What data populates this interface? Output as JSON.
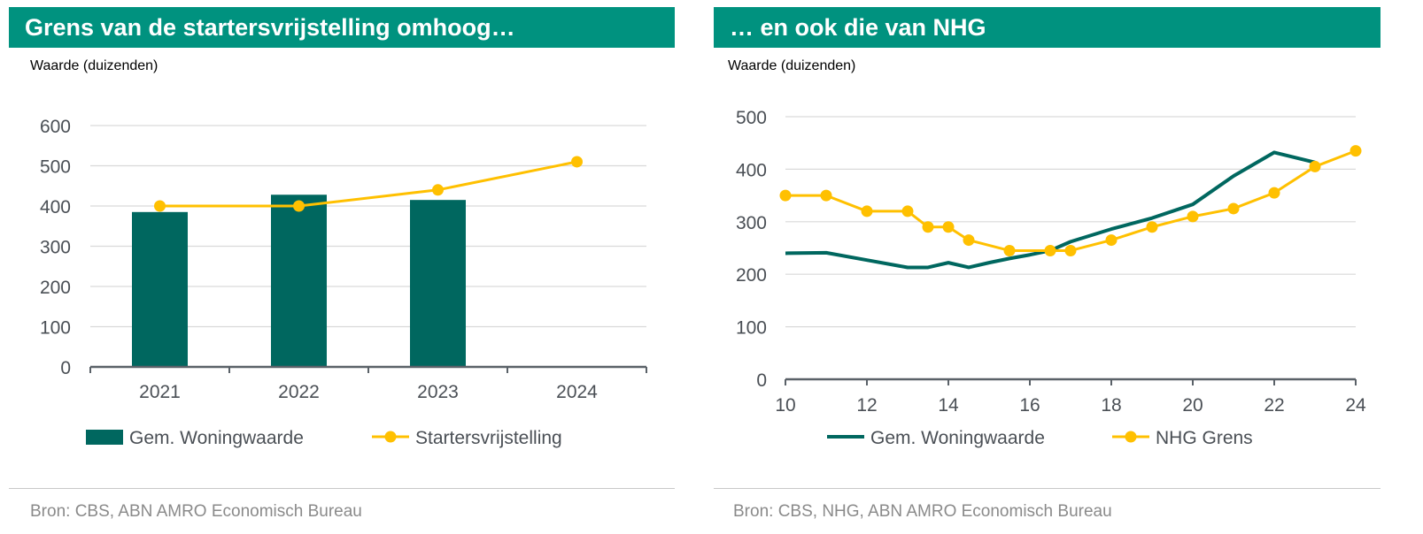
{
  "colors": {
    "banner": "#00927f",
    "bar": "#00675f",
    "line_green": "#00675f",
    "line_yellow": "#ffc000",
    "grid": "#d9d9d9",
    "axis": "#5a6168"
  },
  "left_panel": {
    "title": "Grens van de startersvrijstelling omhoog…",
    "ylabel": "Waarde (duizenden)",
    "source": "Bron: CBS, ABN AMRO Economisch Bureau"
  },
  "right_panel": {
    "title": "… en ook die van NHG",
    "ylabel": "Waarde (duizenden)",
    "source": "Bron: CBS, NHG, ABN AMRO Economisch Bureau"
  },
  "chart_data": [
    {
      "type": "bar",
      "categories": [
        "2021",
        "2022",
        "2023",
        "2024"
      ],
      "ylim": [
        0,
        600
      ],
      "yticks": [
        0,
        100,
        200,
        300,
        400,
        500,
        600
      ],
      "grid": true,
      "legend": "bottom",
      "series": [
        {
          "name": "Gem. Woningwaarde",
          "kind": "bar",
          "values": [
            385,
            428,
            415,
            null
          ]
        },
        {
          "name": "Startersvrijstelling",
          "kind": "line",
          "values": [
            400,
            400,
            440,
            510
          ]
        }
      ]
    },
    {
      "type": "line",
      "xlim": [
        10,
        24
      ],
      "xticks": [
        10,
        12,
        14,
        16,
        18,
        20,
        22,
        24
      ],
      "ylim": [
        0,
        500
      ],
      "yticks": [
        0,
        100,
        200,
        300,
        400,
        500
      ],
      "grid": true,
      "legend": "bottom",
      "series": [
        {
          "name": "Gem. Woningwaarde",
          "markers": false,
          "x": [
            10,
            11,
            12,
            13,
            13.5,
            14,
            14.5,
            15,
            15.5,
            16,
            16.5,
            17,
            18,
            19,
            20,
            21,
            22,
            23
          ],
          "y": [
            240,
            241,
            227,
            213,
            213,
            222,
            213,
            222,
            230,
            237,
            245,
            262,
            286,
            307,
            333,
            387,
            432,
            413
          ]
        },
        {
          "name": "NHG Grens",
          "markers": true,
          "x": [
            10,
            11,
            12,
            13,
            13.5,
            14,
            14.5,
            15.5,
            16.5,
            17,
            18,
            19,
            20,
            21,
            22,
            23,
            24
          ],
          "y": [
            350,
            350,
            320,
            320,
            290,
            290,
            265,
            245,
            245,
            245,
            265,
            290,
            310,
            325,
            355,
            405,
            435
          ]
        }
      ]
    }
  ]
}
